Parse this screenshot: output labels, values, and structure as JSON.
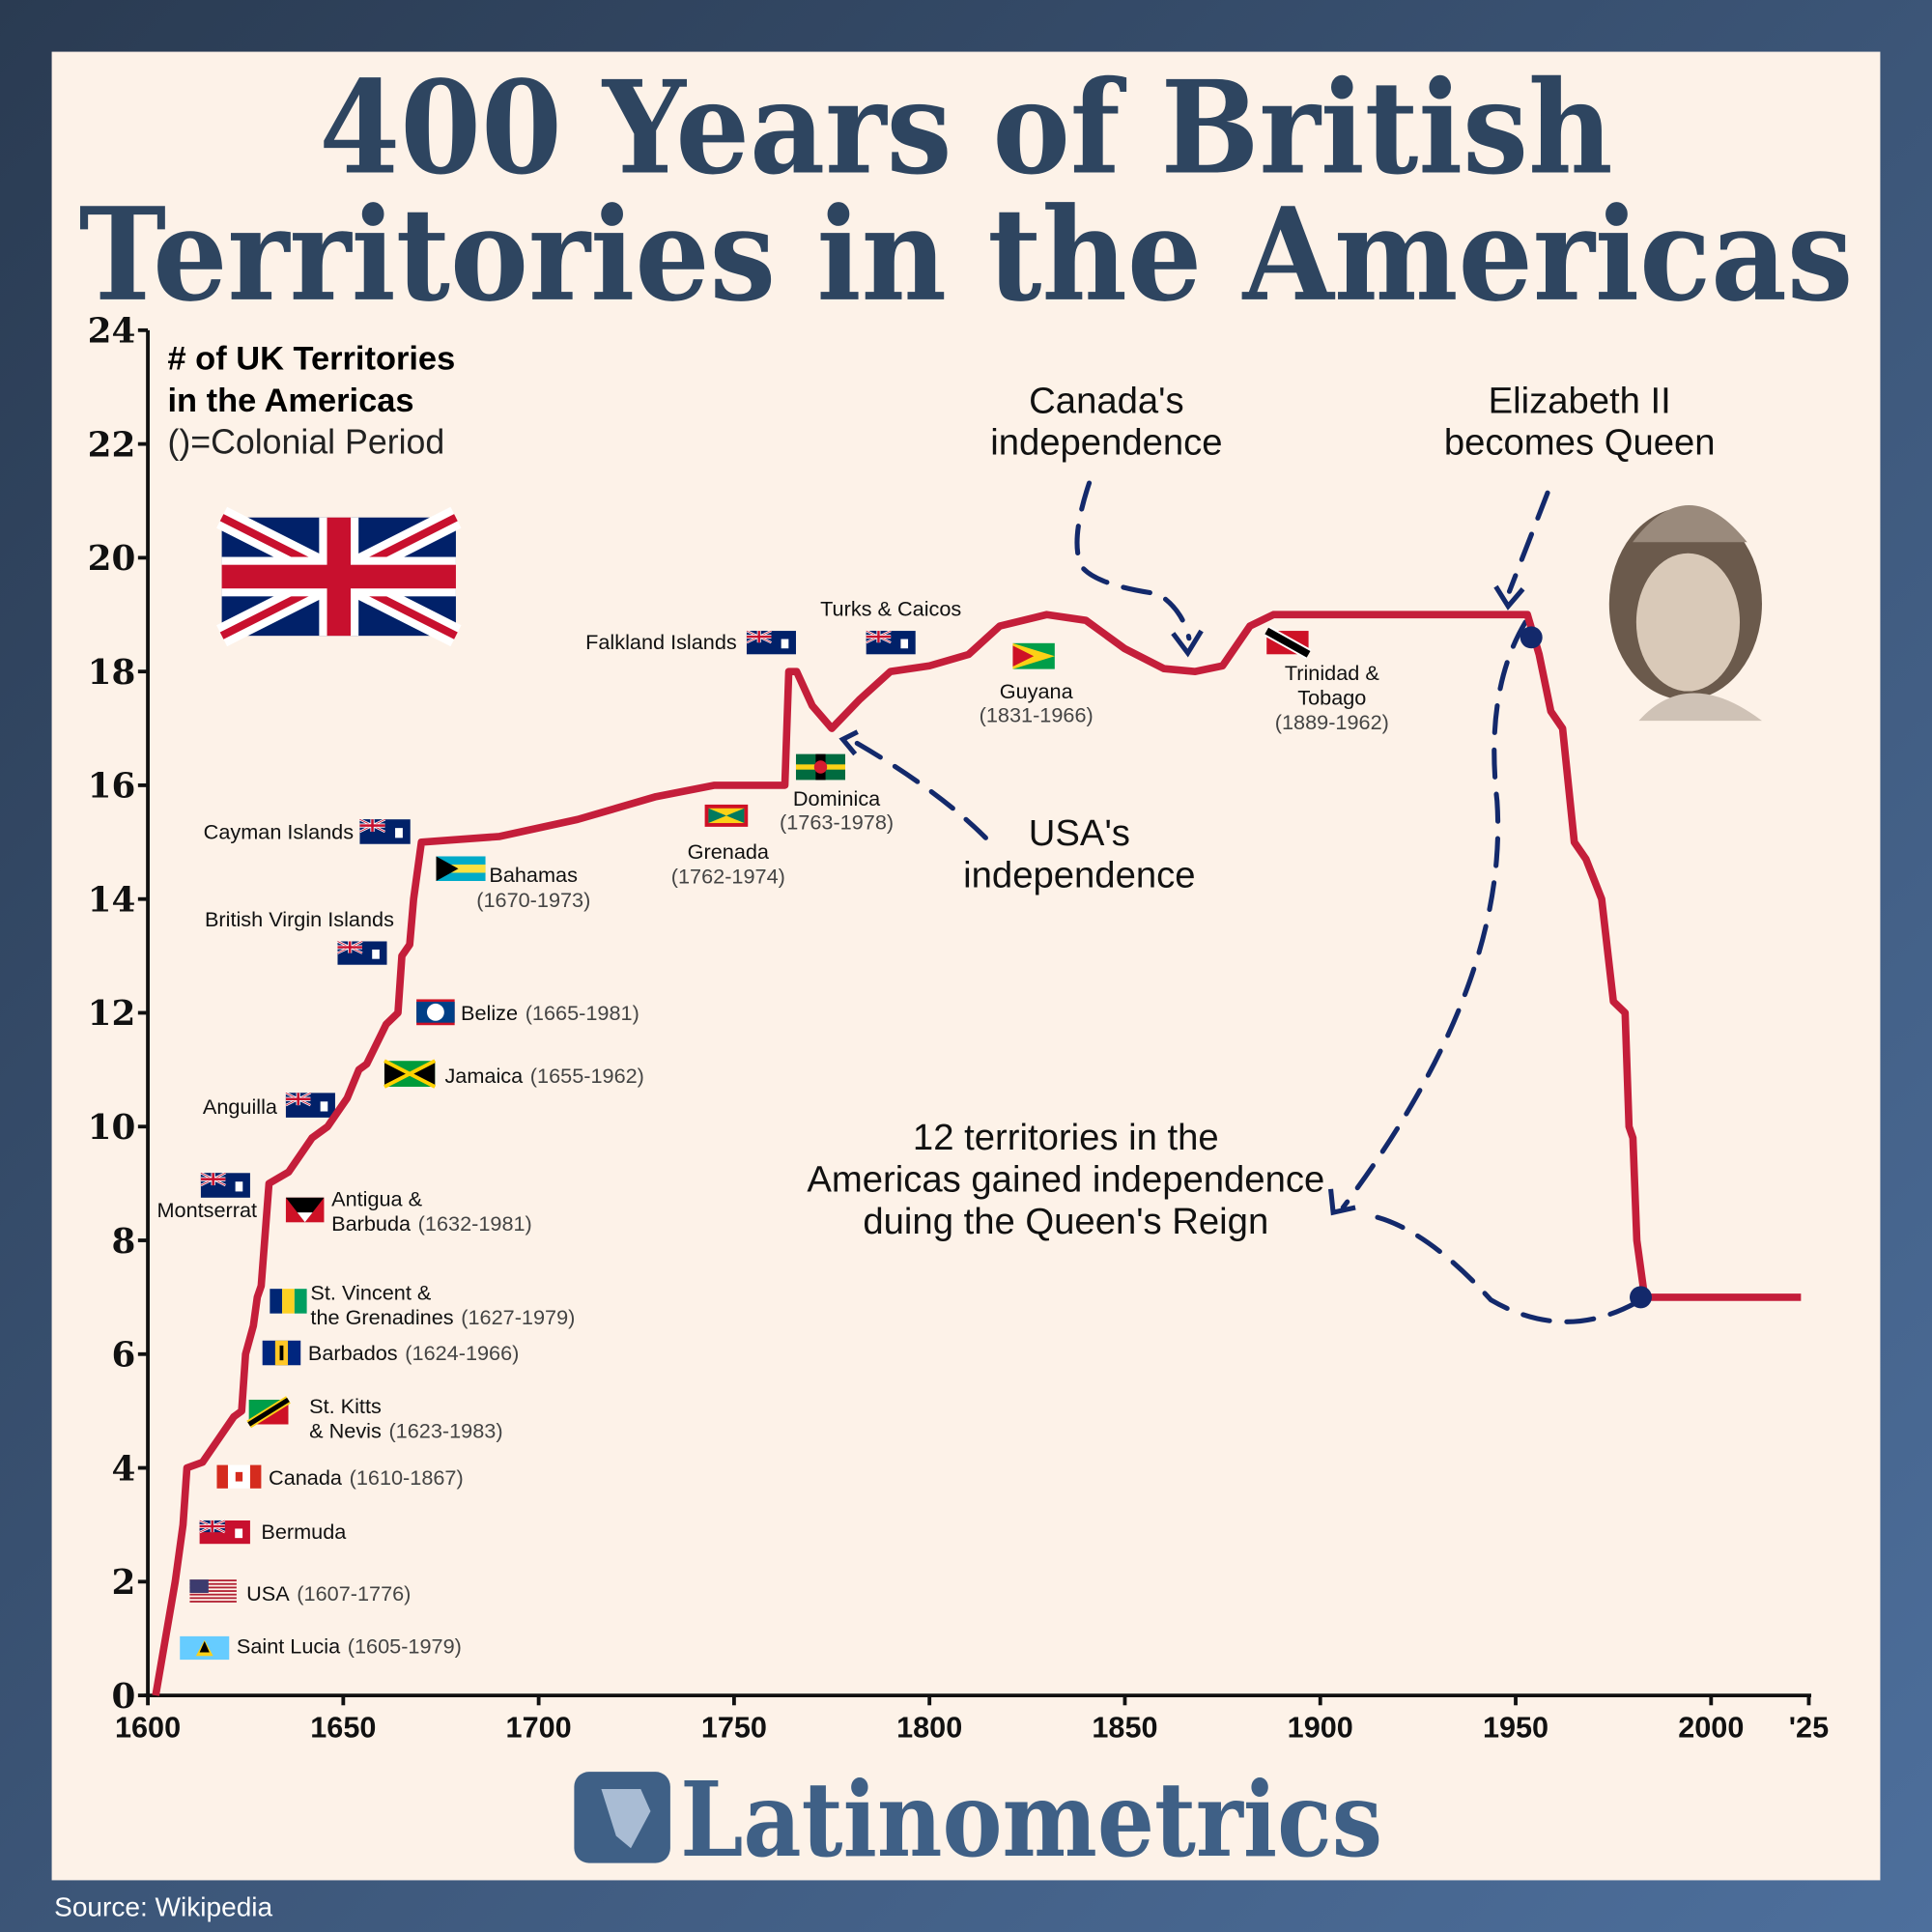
{
  "chart_data": {
    "type": "line",
    "title": [
      "400 Years of British",
      "Territories in the Americas"
    ],
    "y_label": [
      "# of UK Territories",
      "in the Americas"
    ],
    "y_label_note": "()=Colonial Period",
    "x": [
      1602,
      1607,
      1609,
      1610,
      1614,
      1618,
      1622,
      1624,
      1625,
      1627,
      1628,
      1629,
      1631,
      1636,
      1642,
      1646,
      1651,
      1654,
      1656,
      1661,
      1664,
      1665,
      1667,
      1668,
      1670,
      1690,
      1710,
      1730,
      1745,
      1763,
      1764,
      1766,
      1770,
      1775,
      1782,
      1790,
      1800,
      1810,
      1818,
      1830,
      1840,
      1850,
      1860,
      1868,
      1875,
      1882,
      1888,
      1953,
      1956,
      1959,
      1962,
      1965,
      1968,
      1972,
      1975,
      1978,
      1979,
      1980,
      1981,
      1983,
      2023
    ],
    "values": [
      0,
      2,
      3,
      4,
      4.1,
      4.5,
      4.9,
      5,
      6,
      6.5,
      7,
      7.2,
      9,
      9.2,
      9.8,
      10,
      10.5,
      11,
      11.1,
      11.8,
      12,
      13,
      13.2,
      14,
      15,
      15.1,
      15.4,
      15.8,
      16,
      16,
      18,
      18,
      17.4,
      17,
      17.5,
      18,
      18.1,
      18.3,
      18.8,
      19,
      18.9,
      18.4,
      18.05,
      18,
      18.1,
      18.8,
      19,
      19,
      18.3,
      17.3,
      17,
      15,
      14.7,
      14,
      12.2,
      12,
      10,
      9.8,
      8,
      7,
      7
    ],
    "color": "#c41e3a",
    "highlight_points": [
      {
        "x": 1954,
        "y": 18.6
      },
      {
        "x": 1982,
        "y": 7
      }
    ],
    "highlight_color": "#13296b",
    "xlim": [
      1600,
      2025
    ],
    "ylim": [
      0,
      24
    ],
    "xticks": [
      1600,
      1650,
      1700,
      1750,
      1800,
      1850,
      1900,
      1950,
      2000,
      {
        "value": 2025,
        "label": "'25"
      }
    ],
    "yticks": [
      0,
      2,
      4,
      6,
      8,
      10,
      12,
      14,
      16,
      18,
      20,
      22,
      24
    ],
    "territories": [
      {
        "name": [
          "Saint Lucia"
        ],
        "period": "(1605-1979)"
      },
      {
        "name": [
          "USA"
        ],
        "period": "(1607-1776)"
      },
      {
        "name": [
          "Bermuda"
        ]
      },
      {
        "name": [
          "Canada"
        ],
        "period": "(1610-1867)"
      },
      {
        "name": [
          "St. Kitts",
          "& Nevis"
        ],
        "period": "(1623-1983)"
      },
      {
        "name": [
          "Barbados"
        ],
        "period": "(1624-1966)"
      },
      {
        "name": [
          "St. Vincent &",
          "the Grenadines"
        ],
        "period": "(1627-1979)"
      },
      {
        "name": [
          "Antigua &",
          "Barbuda"
        ],
        "period": "(1632-1981)"
      },
      {
        "name": [
          "Montserrat"
        ]
      },
      {
        "name": [
          "Anguilla"
        ]
      },
      {
        "name": [
          "Jamaica"
        ],
        "period": "(1655-1962)"
      },
      {
        "name": [
          "Belize"
        ],
        "period": "(1665-1981)"
      },
      {
        "name": [
          "British Virgin Islands"
        ]
      },
      {
        "name": [
          "Cayman Islands"
        ]
      },
      {
        "name": [
          "Bahamas"
        ],
        "period": "(1670-1973)"
      },
      {
        "name": [
          "Grenada"
        ],
        "period": "(1762-1974)"
      },
      {
        "name": [
          "Dominica"
        ],
        "period": "(1763-1978)"
      },
      {
        "name": [
          "Falkland Islands"
        ]
      },
      {
        "name": [
          "Turks & Caicos"
        ]
      },
      {
        "name": [
          "Guyana"
        ],
        "period": "(1831-1966)"
      },
      {
        "name": [
          "Trinidad &",
          "Tobago"
        ],
        "period": "(1889-1962)"
      }
    ],
    "annotations": [
      {
        "lines": [
          "Canada's",
          "independence"
        ]
      },
      {
        "lines": [
          "Elizabeth II",
          "becomes Queen"
        ]
      },
      {
        "lines": [
          "USA's",
          "independence"
        ]
      },
      {
        "lines": [
          "12 territories in the",
          "Americas gained independence",
          "duing the Queen's Reign"
        ]
      }
    ],
    "brand": "Latinometrics",
    "source": "Source: Wikipedia"
  }
}
